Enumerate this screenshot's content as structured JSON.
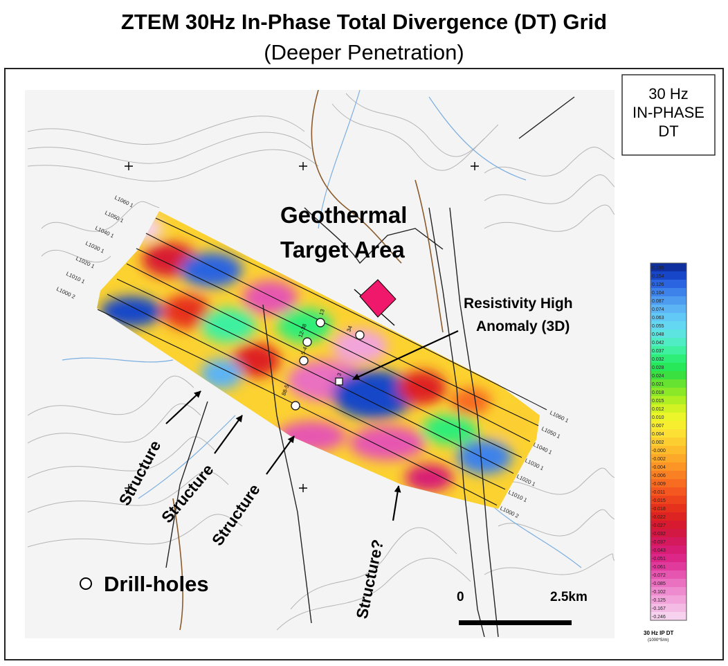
{
  "title": "ZTEM 30Hz In-Phase Total Divergence (DT) Grid",
  "subtitle": "(Deeper Penetration)",
  "legend_box": {
    "line1": "30 Hz",
    "line2": "IN-PHASE",
    "line3": "DT"
  },
  "annotations": {
    "target_line1": "Geothermal",
    "target_line2": "Target Area",
    "anomaly_line1": "Resistivity High",
    "anomaly_line2": "Anomaly (3D)",
    "structure": "Structure",
    "structure_q": "Structure?",
    "drillholes": "Drill-holes"
  },
  "scale": {
    "start": "0",
    "end": "2.5km"
  },
  "colorbar": {
    "values": [
      "0.195",
      "0.154",
      "0.126",
      "0.104",
      "0.087",
      "0.074",
      "0.063",
      "0.055",
      "0.048",
      "0.042",
      "0.037",
      "0.032",
      "0.028",
      "0.024",
      "0.021",
      "0.018",
      "0.015",
      "0.012",
      "0.010",
      "0.007",
      "0.004",
      "0.002",
      "-0.000",
      "-0.002",
      "-0.004",
      "-0.006",
      "-0.009",
      "-0.011",
      "-0.015",
      "-0.018",
      "-0.022",
      "-0.027",
      "-0.032",
      "-0.037",
      "-0.043",
      "-0.051",
      "-0.061",
      "-0.072",
      "-0.085",
      "-0.102",
      "-0.125",
      "-0.167",
      "-0.246"
    ],
    "colors": [
      "#1030a0",
      "#1846c8",
      "#2a64e0",
      "#3c82ea",
      "#4e9cf0",
      "#5cb4f4",
      "#62c8f6",
      "#64d8f2",
      "#5ee4e0",
      "#50ecc4",
      "#3ef0a0",
      "#2eee78",
      "#26e858",
      "#3ae040",
      "#66e230",
      "#8ae828",
      "#b0ee24",
      "#d2f224",
      "#ecf42a",
      "#f8ee30",
      "#fce034",
      "#fcce30",
      "#fcbc2c",
      "#fca828",
      "#fc9426",
      "#fa8024",
      "#f86c22",
      "#f45820",
      "#ee441e",
      "#e6321c",
      "#de2422",
      "#d81a30",
      "#d41844",
      "#d41a5c",
      "#d81e74",
      "#dc2688",
      "#e03a9c",
      "#e656b0",
      "#ea70c0",
      "#ee8ace",
      "#f2a4da",
      "#f4bce4",
      "#f6d2ee"
    ],
    "label1": "30 Hz IP DT",
    "label2": "(1000*S/m)"
  },
  "flight_lines": [
    "L1060 1",
    "L1050 1",
    "L1040 1",
    "L1030 1",
    "L1020 1",
    "L1010 1",
    "L1000 2"
  ],
  "drillhole_labels": [
    "13",
    "12-38",
    "5-4",
    "34",
    "3",
    "88-5"
  ]
}
